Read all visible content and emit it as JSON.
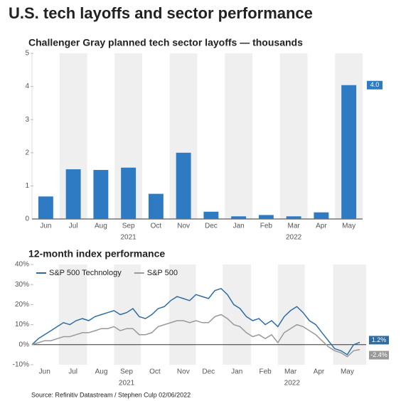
{
  "title": "U.S. tech layoffs and sector performance",
  "source": "Source: Refinitiv Datastream / Stephen Culp 02/06/2022",
  "chart_data": [
    {
      "type": "bar",
      "title": "Challenger Gray planned tech sector layoffs — thousands",
      "categories": [
        "Jun",
        "Jul",
        "Aug",
        "Sep",
        "Oct",
        "Nov",
        "Dec",
        "Jan",
        "Feb",
        "Mar",
        "Apr",
        "May"
      ],
      "groups": [
        {
          "label": "2021",
          "count": 7
        },
        {
          "label": "2022",
          "count": 5
        }
      ],
      "values": [
        0.68,
        1.5,
        1.48,
        1.55,
        0.76,
        2.0,
        0.22,
        0.08,
        0.12,
        0.08,
        0.2,
        4.04
      ],
      "value_labels": [
        null,
        null,
        null,
        null,
        null,
        null,
        null,
        null,
        null,
        null,
        null,
        "4.0"
      ],
      "color": "#2e7bc4",
      "ylim": [
        0,
        5
      ],
      "yticks": [
        0,
        1,
        2,
        3,
        4,
        5
      ],
      "grid": false
    },
    {
      "type": "line",
      "title": "12-month index performance",
      "x": [
        0,
        1,
        2,
        3,
        4,
        5,
        6,
        7,
        8,
        9,
        10,
        11,
        12,
        13,
        14,
        15,
        16,
        17,
        18,
        19,
        20,
        21,
        22,
        23,
        24,
        25,
        26,
        27,
        28,
        29,
        30,
        31,
        32,
        33,
        34,
        35,
        36,
        37,
        38,
        39,
        40,
        41,
        42,
        43,
        44,
        45,
        46,
        47,
        48,
        49,
        50,
        51,
        52
      ],
      "xlim": [
        0,
        53
      ],
      "xticks": [
        {
          "value": 2,
          "label": "Jun"
        },
        {
          "value": 6.5,
          "label": "Jul"
        },
        {
          "value": 11,
          "label": "Aug"
        },
        {
          "value": 15,
          "label": "Sep"
        },
        {
          "value": 19.5,
          "label": "Oct"
        },
        {
          "value": 24,
          "label": "Nov"
        },
        {
          "value": 28,
          "label": "Dec"
        },
        {
          "value": 32.5,
          "label": "Jan"
        },
        {
          "value": 37,
          "label": "Feb"
        },
        {
          "value": 41,
          "label": "Mar"
        },
        {
          "value": 45.5,
          "label": "Apr"
        },
        {
          "value": 50,
          "label": "May"
        }
      ],
      "groups": [
        {
          "label": "2021",
          "count": 7
        },
        {
          "label": "2022",
          "count": 5
        }
      ],
      "ylim": [
        -10,
        40
      ],
      "yticks": [
        {
          "value": -10,
          "label": "-10%"
        },
        {
          "value": 0,
          "label": "0%"
        },
        {
          "value": 10,
          "label": "10%"
        },
        {
          "value": 20,
          "label": "20%"
        },
        {
          "value": 30,
          "label": "30%"
        },
        {
          "value": 40,
          "label": "40%"
        }
      ],
      "legend": "upper left",
      "grid": false,
      "series": [
        {
          "name": "S&P 500 Technology",
          "color": "#2e6da4",
          "last_label": "1.2%",
          "values": [
            0,
            3,
            5,
            7,
            9,
            11,
            10,
            12,
            13,
            12,
            14,
            15,
            16,
            17,
            15,
            16,
            18,
            14,
            13,
            15,
            18,
            19,
            22,
            24,
            23,
            22,
            25,
            24,
            23,
            27,
            28,
            25,
            20,
            18,
            14,
            12,
            13,
            10,
            12,
            9,
            14,
            17,
            19,
            16,
            12,
            10,
            6,
            2,
            -2,
            -3,
            -5,
            0,
            1.2
          ]
        },
        {
          "name": "S&P 500",
          "color": "#999999",
          "last_label": "-2.4%",
          "values": [
            0,
            1,
            2,
            2,
            3,
            4,
            4,
            5,
            6,
            6,
            7,
            8,
            8,
            9,
            7,
            8,
            8,
            5,
            5,
            6,
            9,
            10,
            11,
            12,
            12,
            11,
            12,
            11,
            11,
            14,
            15,
            13,
            10,
            9,
            6,
            4,
            5,
            3,
            5,
            1,
            6,
            8,
            10,
            9,
            7,
            5,
            2,
            -1,
            -3,
            -4,
            -6,
            -3,
            -2.4
          ]
        }
      ]
    }
  ]
}
